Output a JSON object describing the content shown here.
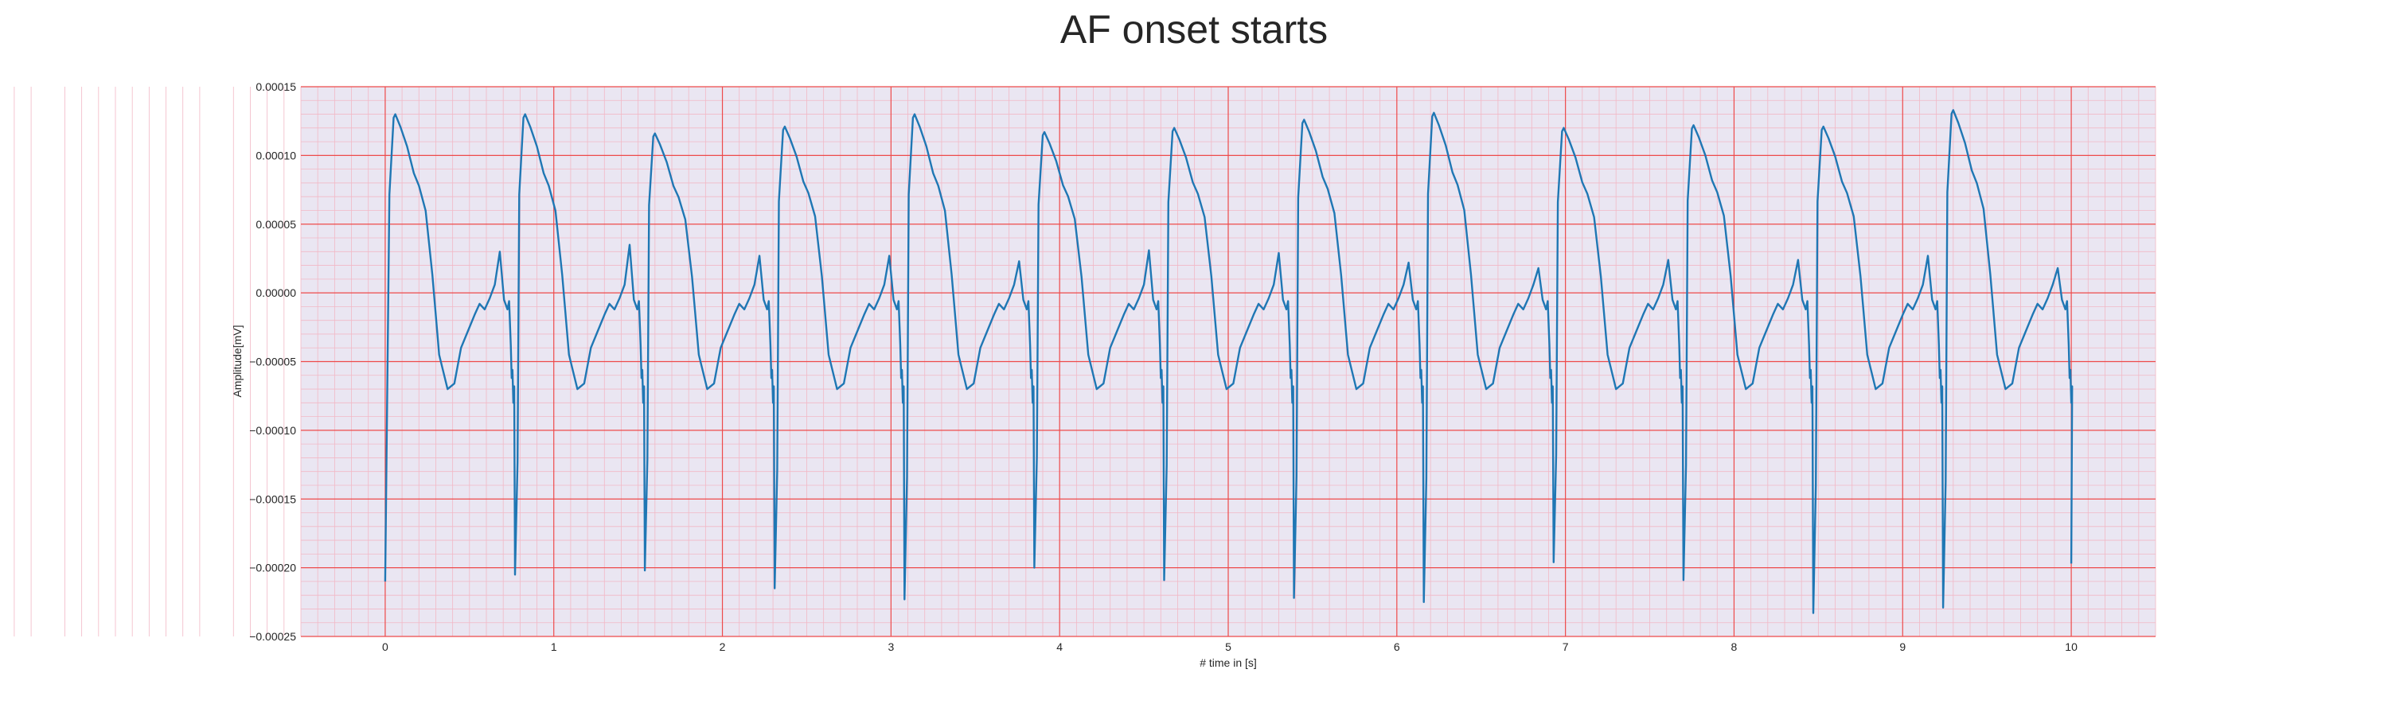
{
  "chart_data": {
    "type": "line",
    "title": "AF onset starts",
    "xlabel": "# time in [s]",
    "ylabel": "Amplitude[mV]",
    "xlim": [
      -0.5,
      10.5
    ],
    "ylim": [
      -0.00025,
      0.00015
    ],
    "x_ticks": [
      0,
      1,
      2,
      3,
      4,
      5,
      6,
      7,
      8,
      9,
      10
    ],
    "x_tick_labels": [
      "0",
      "1",
      "2",
      "3",
      "4",
      "5",
      "6",
      "7",
      "8",
      "9",
      "10"
    ],
    "y_ticks": [
      -0.00025,
      -0.0002,
      -0.00015,
      -0.0001,
      -5e-05,
      0,
      5e-05,
      0.0001,
      0.00015
    ],
    "y_tick_labels": [
      "−0.00025",
      "−0.00020",
      "−0.00015",
      "−0.00010",
      "−0.00005",
      "0.00000",
      "0.00005",
      "0.00010",
      "0.00015"
    ],
    "grid": true,
    "series": [
      {
        "color": "#1f77b4",
        "beats": [
          {
            "r_time": 0.06,
            "r_peak": 0.00013,
            "s_time": 0.77,
            "s_min": -0.000205,
            "t_peak": 3e-05
          },
          {
            "r_time": 0.83,
            "r_peak": 0.00013,
            "s_time": 1.54,
            "s_min": -0.000202,
            "t_peak": 3.5e-05
          },
          {
            "r_time": 1.6,
            "r_peak": 0.000116,
            "s_time": 2.31,
            "s_min": -0.000215,
            "t_peak": 2.7e-05
          },
          {
            "r_time": 2.37,
            "r_peak": 0.000121,
            "s_time": 3.08,
            "s_min": -0.000223,
            "t_peak": 2.7e-05
          },
          {
            "r_time": 3.14,
            "r_peak": 0.00013,
            "s_time": 3.85,
            "s_min": -0.0002,
            "t_peak": 2.3e-05
          },
          {
            "r_time": 3.91,
            "r_peak": 0.000117,
            "s_time": 4.62,
            "s_min": -0.000209,
            "t_peak": 3.1e-05
          },
          {
            "r_time": 4.68,
            "r_peak": 0.00012,
            "s_time": 5.39,
            "s_min": -0.000222,
            "t_peak": 2.9e-05
          },
          {
            "r_time": 5.45,
            "r_peak": 0.000126,
            "s_time": 6.16,
            "s_min": -0.000225,
            "t_peak": 2.2e-05
          },
          {
            "r_time": 6.22,
            "r_peak": 0.000131,
            "s_time": 6.93,
            "s_min": -0.000196,
            "t_peak": 1.8e-05
          },
          {
            "r_time": 6.99,
            "r_peak": 0.00012,
            "s_time": 7.7,
            "s_min": -0.000209,
            "t_peak": 2.4e-05
          },
          {
            "r_time": 7.76,
            "r_peak": 0.000122,
            "s_time": 8.47,
            "s_min": -0.000233,
            "t_peak": 2.4e-05
          },
          {
            "r_time": 8.53,
            "r_peak": 0.000121,
            "s_time": 9.24,
            "s_min": -0.000229,
            "t_peak": 2.7e-05
          },
          {
            "r_time": 9.3,
            "r_peak": 0.000133,
            "s_time": 10.0,
            "s_min": -0.000197,
            "t_peak": 1.8e-05
          }
        ],
        "start": {
          "x": 0.0,
          "y": -0.00021
        },
        "end": {
          "x": 10.0,
          "y": -0.000197
        }
      }
    ]
  }
}
